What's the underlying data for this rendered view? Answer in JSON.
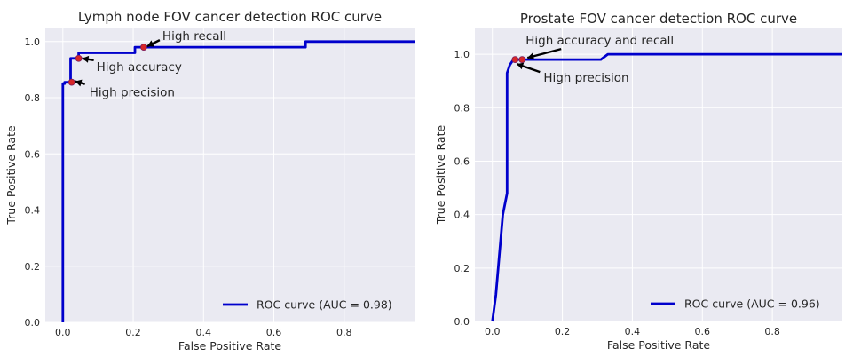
{
  "chart_data": [
    {
      "type": "line",
      "title": "Lymph node FOV cancer detection ROC curve",
      "xlabel": "False Positive Rate",
      "ylabel": "True Positive Rate",
      "xlim": [
        -0.05,
        1.0
      ],
      "ylim": [
        0.0,
        1.05
      ],
      "xticks": [
        0.0,
        0.2,
        0.4,
        0.6,
        0.8
      ],
      "xtick_labels": [
        "0.0",
        "0.2",
        "0.4",
        "0.6",
        "0.8"
      ],
      "yticks": [
        0.0,
        0.2,
        0.4,
        0.6,
        0.8,
        1.0
      ],
      "ytick_labels": [
        "0.0",
        "0.2",
        "0.4",
        "0.6",
        "0.8",
        "1.0"
      ],
      "grid": true,
      "legend_position": "lower-right",
      "series": [
        {
          "name": "ROC curve (AUC = 0.98)",
          "color": "#0000cc",
          "x": [
            0.0,
            0.0,
            0.005,
            0.005,
            0.022,
            0.022,
            0.045,
            0.045,
            0.205,
            0.205,
            0.69,
            0.69,
            1.0
          ],
          "y": [
            0.0,
            0.85,
            0.85,
            0.855,
            0.855,
            0.94,
            0.94,
            0.96,
            0.96,
            0.98,
            0.98,
            1.0,
            1.0
          ]
        }
      ],
      "annotations": [
        {
          "text": "High precision",
          "x": 0.025,
          "y": 0.855
        },
        {
          "text": "High accuracy",
          "x": 0.045,
          "y": 0.94
        },
        {
          "text": "High recall",
          "x": 0.23,
          "y": 0.98
        }
      ],
      "marker_color": "#d62728"
    },
    {
      "type": "line",
      "title": "Prostate FOV cancer detection ROC curve",
      "xlabel": "False Positive Rate",
      "ylabel": "True Positive Rate",
      "xlim": [
        -0.05,
        1.0
      ],
      "ylim": [
        0.0,
        1.1
      ],
      "xticks": [
        0.0,
        0.2,
        0.4,
        0.6,
        0.8
      ],
      "xtick_labels": [
        "0.0",
        "0.2",
        "0.4",
        "0.6",
        "0.8"
      ],
      "yticks": [
        0.0,
        0.2,
        0.4,
        0.6,
        0.8,
        1.0
      ],
      "ytick_labels": [
        "0.0",
        "0.2",
        "0.4",
        "0.6",
        "0.8",
        "1.0"
      ],
      "grid": true,
      "legend_position": "lower-right",
      "series": [
        {
          "name": "ROC curve (AUC = 0.96)",
          "color": "#0000cc",
          "x": [
            0.0,
            0.01,
            0.02,
            0.03,
            0.042,
            0.042,
            0.05,
            0.06,
            0.08,
            0.31,
            0.33,
            1.0
          ],
          "y": [
            0.0,
            0.1,
            0.25,
            0.4,
            0.48,
            0.93,
            0.96,
            0.98,
            0.98,
            0.98,
            1.0,
            1.0
          ]
        }
      ],
      "annotations": [
        {
          "text": "High accuracy and recall",
          "x": 0.085,
          "y": 0.98
        },
        {
          "text": "High precision",
          "x": 0.065,
          "y": 0.98
        }
      ],
      "marker_color": "#d62728"
    }
  ]
}
